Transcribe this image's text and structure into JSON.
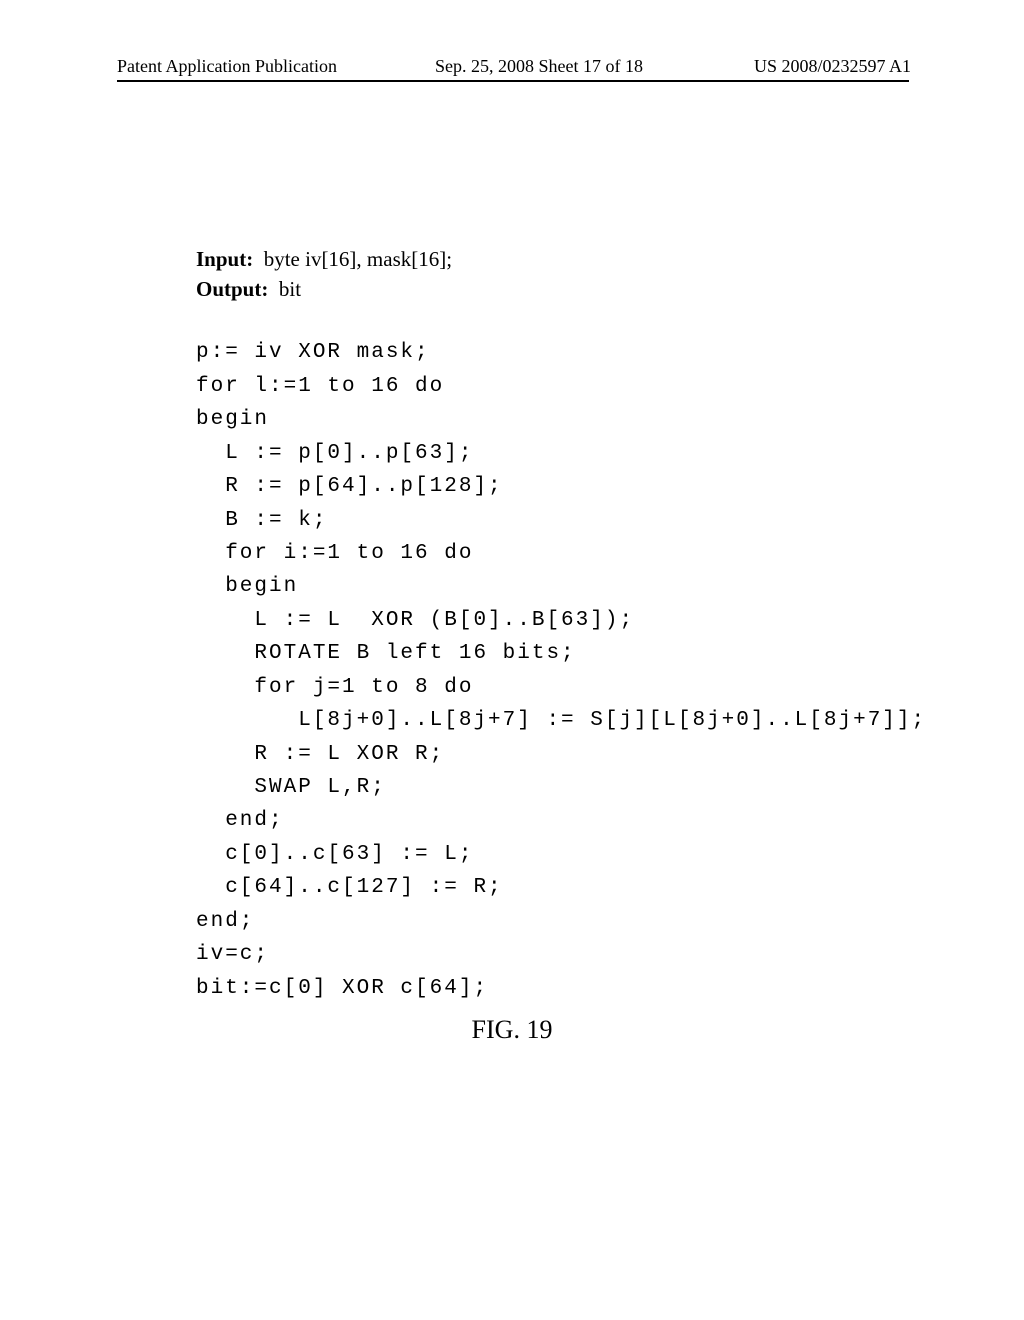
{
  "header": {
    "left": "Patent Application Publication",
    "center": "Sep. 25, 2008  Sheet 17 of 18",
    "right": "US 2008/0232597 A1"
  },
  "code": {
    "input_label": "Input:",
    "input_rest": "  byte iv[16], mask[16];",
    "output_label": "Output:",
    "output_rest": "  bit",
    "l01": "p:= iv XOR mask;",
    "l02": "for l:=1 to 16 do",
    "l03": "begin",
    "l04": "  L := p[0]..p[63];",
    "l05": "  R := p[64]..p[128];",
    "l06": "  B := k;",
    "l07": "  for i:=1 to 16 do",
    "l08": "  begin",
    "l09": "    L := L  XOR (B[0]..B[63]);",
    "l10": "    ROTATE B left 16 bits;",
    "l11": "    for j=1 to 8 do",
    "l12": "       L[8j+0]..L[8j+7] := S[j][L[8j+0]..L[8j+7]];",
    "l13": "    R := L XOR R;",
    "l14": "    SWAP L,R;",
    "l15": "  end;",
    "l16": "  c[0]..c[63] := L;",
    "l17": "  c[64]..c[127] := R;",
    "l18": "end;",
    "l19": "iv=c;",
    "l20": "bit:=c[0] XOR c[64];"
  },
  "figure_caption": "FIG. 19"
}
